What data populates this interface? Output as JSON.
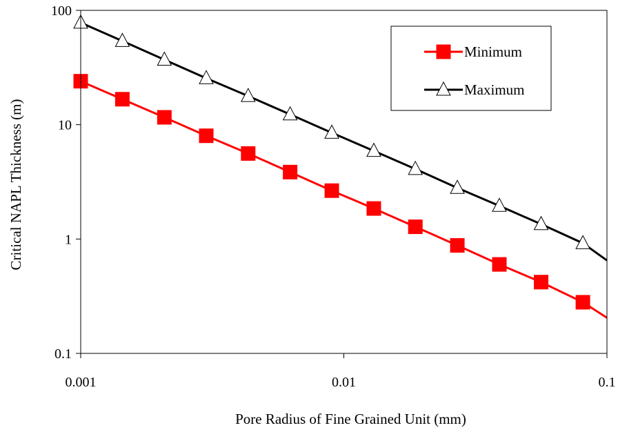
{
  "chart_data": {
    "type": "line",
    "title": "",
    "xlabel": "Pore Radius of Fine Grained Unit (mm)",
    "ylabel": "Critical NAPL Thickness (m)",
    "xscale": "log",
    "yscale": "log",
    "xlim": [
      0.001,
      0.1
    ],
    "ylim": [
      0.1,
      100
    ],
    "x_ticks": [
      0.001,
      0.01,
      0.1
    ],
    "x_tick_labels": [
      "0.001",
      "0.01",
      "0.1"
    ],
    "y_ticks": [
      0.1,
      1,
      10,
      100
    ],
    "y_tick_labels": [
      "0.1",
      "1",
      "10",
      "100"
    ],
    "grid": false,
    "legend_position": "top-right",
    "series": [
      {
        "name": "Minimum",
        "color": "#ff0000",
        "marker": "filled-square",
        "x": [
          0.001,
          0.00144,
          0.00208,
          0.003,
          0.00433,
          0.00625,
          0.009,
          0.013,
          0.0187,
          0.027,
          0.039,
          0.0562,
          0.081
        ],
        "y": [
          24,
          16.7,
          11.6,
          8.0,
          5.6,
          3.85,
          2.65,
          1.85,
          1.28,
          0.88,
          0.6,
          0.42,
          0.28
        ]
      },
      {
        "name": "Maximum",
        "color": "#000000",
        "marker": "open-triangle",
        "x": [
          0.001,
          0.00144,
          0.00208,
          0.003,
          0.00433,
          0.00625,
          0.009,
          0.013,
          0.0187,
          0.027,
          0.039,
          0.0562,
          0.081
        ],
        "y": [
          78,
          54,
          37,
          25.5,
          17.8,
          12.3,
          8.5,
          5.9,
          4.1,
          2.8,
          1.95,
          1.35,
          0.92
        ]
      }
    ],
    "line_extension": [
      {
        "series": "Minimum",
        "x": 0.1,
        "y": 0.205
      },
      {
        "series": "Maximum",
        "x": 0.1,
        "y": 0.65
      }
    ]
  }
}
